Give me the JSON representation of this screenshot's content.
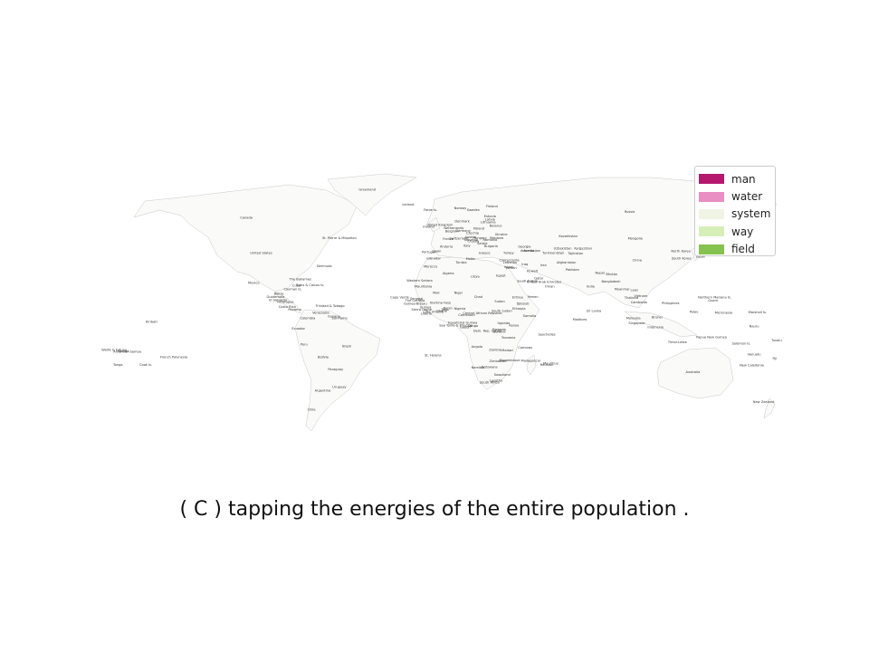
{
  "legend": {
    "items": [
      {
        "label": "man",
        "color": "#b5196e"
      },
      {
        "label": "water",
        "color": "#e98fc3"
      },
      {
        "label": "system",
        "color": "#f0f4e4"
      },
      {
        "label": "way",
        "color": "#d6efb8"
      },
      {
        "label": "field",
        "color": "#86c24f"
      }
    ]
  },
  "caption": "( C ) tapping the energies of the entire population .",
  "country_labels": [
    {
      "name": "Greenland",
      "lon": -41,
      "lat": 73
    },
    {
      "name": "Iceland",
      "lon": -19,
      "lat": 65
    },
    {
      "name": "Faroe Is.",
      "lon": -7,
      "lat": 62
    },
    {
      "name": "Norway",
      "lon": 9,
      "lat": 63
    },
    {
      "name": "Sweden",
      "lon": 16,
      "lat": 62
    },
    {
      "name": "Finland",
      "lon": 26,
      "lat": 64
    },
    {
      "name": "Russia",
      "lon": 100,
      "lat": 61
    },
    {
      "name": "Canada",
      "lon": -106,
      "lat": 58
    },
    {
      "name": "United States",
      "lon": -98,
      "lat": 39
    },
    {
      "name": "St. Pierre & Miquelon",
      "lon": -56,
      "lat": 47
    },
    {
      "name": "Bermuda",
      "lon": -64,
      "lat": 32
    },
    {
      "name": "Mexico",
      "lon": -102,
      "lat": 23
    },
    {
      "name": "The Bahamas",
      "lon": -77,
      "lat": 25
    },
    {
      "name": "Cuba",
      "lon": -79,
      "lat": 21.5
    },
    {
      "name": "Turks & Caicos Is.",
      "lon": -71.7,
      "lat": 21.7
    },
    {
      "name": "Cayman Is.",
      "lon": -81,
      "lat": 19.5
    },
    {
      "name": "Belize",
      "lon": -88.5,
      "lat": 17.2
    },
    {
      "name": "Guatemala",
      "lon": -90.3,
      "lat": 15.5
    },
    {
      "name": "El Salvador",
      "lon": -88.9,
      "lat": 13.7
    },
    {
      "name": "Nicaragua",
      "lon": -85,
      "lat": 12.8
    },
    {
      "name": "Costa Rica",
      "lon": -84,
      "lat": 10
    },
    {
      "name": "Panama",
      "lon": -80,
      "lat": 8.5
    },
    {
      "name": "Trinidad & Tobago",
      "lon": -61,
      "lat": 10.5
    },
    {
      "name": "Venezuela",
      "lon": -66,
      "lat": 7
    },
    {
      "name": "Guyana",
      "lon": -58.9,
      "lat": 5
    },
    {
      "name": "Suriname",
      "lon": -55.9,
      "lat": 4
    },
    {
      "name": "Colombia",
      "lon": -73,
      "lat": 4
    },
    {
      "name": "Ecuador",
      "lon": -78,
      "lat": -1.5
    },
    {
      "name": "Peru",
      "lon": -75,
      "lat": -10
    },
    {
      "name": "Brazil",
      "lon": -52,
      "lat": -11
    },
    {
      "name": "Bolivia",
      "lon": -64.7,
      "lat": -17
    },
    {
      "name": "Paraguay",
      "lon": -58,
      "lat": -23.5
    },
    {
      "name": "Uruguay",
      "lon": -56,
      "lat": -33
    },
    {
      "name": "Argentina",
      "lon": -65,
      "lat": -35
    },
    {
      "name": "Chile",
      "lon": -71,
      "lat": -45
    },
    {
      "name": "Kiribati",
      "lon": -157,
      "lat": 2
    },
    {
      "name": "Wallis & Futuna",
      "lon": -177,
      "lat": -13
    },
    {
      "name": "American Samoa",
      "lon": -170,
      "lat": -14
    },
    {
      "name": "Samoa",
      "lon": -172,
      "lat": -13.7
    },
    {
      "name": "Tonga",
      "lon": -175,
      "lat": -21
    },
    {
      "name": "Cook Is.",
      "lon": -160,
      "lat": -21
    },
    {
      "name": "French Polynesia",
      "lon": -145,
      "lat": -17
    },
    {
      "name": "St. Helena",
      "lon": -5.7,
      "lat": -15.9
    },
    {
      "name": "Ireland",
      "lon": -8,
      "lat": 53
    },
    {
      "name": "United Kingdom",
      "lon": -2,
      "lat": 54
    },
    {
      "name": "Denmark",
      "lon": 10,
      "lat": 56
    },
    {
      "name": "Estonia",
      "lon": 25,
      "lat": 58.6
    },
    {
      "name": "Latvia",
      "lon": 25,
      "lat": 57
    },
    {
      "name": "Lithuania",
      "lon": 24,
      "lat": 55.5
    },
    {
      "name": "Belarus",
      "lon": 28,
      "lat": 53.5
    },
    {
      "name": "Poland",
      "lon": 19,
      "lat": 52
    },
    {
      "name": "Germany",
      "lon": 10.5,
      "lat": 51
    },
    {
      "name": "Netherlands",
      "lon": 5.5,
      "lat": 52.3
    },
    {
      "name": "Belgium",
      "lon": 4.5,
      "lat": 50.6
    },
    {
      "name": "France",
      "lon": 2.5,
      "lat": 46.5
    },
    {
      "name": "Switzerland",
      "lon": 8.2,
      "lat": 46.8
    },
    {
      "name": "Austria",
      "lon": 14.5,
      "lat": 47.5
    },
    {
      "name": "Czechia",
      "lon": 15.5,
      "lat": 49.8
    },
    {
      "name": "Ukraine",
      "lon": 31,
      "lat": 49
    },
    {
      "name": "Moldova",
      "lon": 28.5,
      "lat": 47
    },
    {
      "name": "Romania",
      "lon": 25,
      "lat": 46
    },
    {
      "name": "Hungary",
      "lon": 19.5,
      "lat": 47
    },
    {
      "name": "Slovenia",
      "lon": 14.8,
      "lat": 46.1
    },
    {
      "name": "Croatia",
      "lon": 16,
      "lat": 45.2
    },
    {
      "name": "Serbia",
      "lon": 20.8,
      "lat": 44
    },
    {
      "name": "Bulgaria",
      "lon": 25.5,
      "lat": 42.7
    },
    {
      "name": "Italy",
      "lon": 12.5,
      "lat": 42.8
    },
    {
      "name": "Andorra",
      "lon": 1.5,
      "lat": 42.5
    },
    {
      "name": "Spain",
      "lon": -3.7,
      "lat": 40
    },
    {
      "name": "Portugal",
      "lon": -8,
      "lat": 39.5
    },
    {
      "name": "Gibraltar",
      "lon": -5.3,
      "lat": 36.1
    },
    {
      "name": "Greece",
      "lon": 22,
      "lat": 39
    },
    {
      "name": "Malta",
      "lon": 14.4,
      "lat": 35.9
    },
    {
      "name": "Turkey",
      "lon": 35,
      "lat": 39
    },
    {
      "name": "Georgia",
      "lon": 43.5,
      "lat": 42.3
    },
    {
      "name": "Armenia",
      "lon": 45,
      "lat": 40.2
    },
    {
      "name": "Azerbaijan",
      "lon": 47.5,
      "lat": 40.3
    },
    {
      "name": "Cyprus",
      "lon": 33,
      "lat": 35
    },
    {
      "name": "Syria",
      "lon": 38.5,
      "lat": 35
    },
    {
      "name": "Lebanon",
      "lon": 35.8,
      "lat": 33.9
    },
    {
      "name": "Israel",
      "lon": 34.9,
      "lat": 31.4
    },
    {
      "name": "Jordan",
      "lon": 36.5,
      "lat": 31
    },
    {
      "name": "Iraq",
      "lon": 43.7,
      "lat": 33
    },
    {
      "name": "Iran",
      "lon": 53.7,
      "lat": 32.4
    },
    {
      "name": "Kuwait",
      "lon": 47.7,
      "lat": 29.3
    },
    {
      "name": "Saudi Arabia",
      "lon": 45,
      "lat": 24
    },
    {
      "name": "Qatar",
      "lon": 51.2,
      "lat": 25.3
    },
    {
      "name": "United Arab Emirates",
      "lon": 54,
      "lat": 23.5
    },
    {
      "name": "Oman",
      "lon": 57,
      "lat": 21
    },
    {
      "name": "Yemen",
      "lon": 48,
      "lat": 15.5
    },
    {
      "name": "Kazakhstan",
      "lon": 67,
      "lat": 48
    },
    {
      "name": "Uzbekistan",
      "lon": 64,
      "lat": 41.5
    },
    {
      "name": "Turkmenistan",
      "lon": 59,
      "lat": 39
    },
    {
      "name": "Kyrgyzstan",
      "lon": 75,
      "lat": 41.5
    },
    {
      "name": "Tajikistan",
      "lon": 71,
      "lat": 38.8
    },
    {
      "name": "Afghanistan",
      "lon": 66,
      "lat": 33.9
    },
    {
      "name": "Pakistan",
      "lon": 69.3,
      "lat": 30
    },
    {
      "name": "Mongolia",
      "lon": 103,
      "lat": 46.8
    },
    {
      "name": "China",
      "lon": 104,
      "lat": 35
    },
    {
      "name": "North Korea",
      "lon": 127.5,
      "lat": 40
    },
    {
      "name": "South Korea",
      "lon": 127.8,
      "lat": 36
    },
    {
      "name": "Japan",
      "lon": 138.3,
      "lat": 37
    },
    {
      "name": "Nepal",
      "lon": 84,
      "lat": 28.4
    },
    {
      "name": "Bhutan",
      "lon": 90.4,
      "lat": 27.5
    },
    {
      "name": "Bangladesh",
      "lon": 90,
      "lat": 23.7
    },
    {
      "name": "India",
      "lon": 79,
      "lat": 21
    },
    {
      "name": "Myanmar",
      "lon": 96,
      "lat": 19.5
    },
    {
      "name": "Laos",
      "lon": 102.5,
      "lat": 19
    },
    {
      "name": "Thailand",
      "lon": 101,
      "lat": 15
    },
    {
      "name": "Vietnam",
      "lon": 106,
      "lat": 16
    },
    {
      "name": "Cambodia",
      "lon": 105,
      "lat": 12.5
    },
    {
      "name": "Philippines",
      "lon": 122,
      "lat": 12
    },
    {
      "name": "Northern Mariana Is.",
      "lon": 145.7,
      "lat": 15.2
    },
    {
      "name": "Guam",
      "lon": 144.8,
      "lat": 13.4
    },
    {
      "name": "Palau",
      "lon": 134.5,
      "lat": 7.5
    },
    {
      "name": "Micronesia",
      "lon": 150.5,
      "lat": 7
    },
    {
      "name": "Marshall Is.",
      "lon": 168.7,
      "lat": 7.1
    },
    {
      "name": "Malaysia",
      "lon": 102,
      "lat": 4
    },
    {
      "name": "Brunei",
      "lon": 114.7,
      "lat": 4.5
    },
    {
      "name": "Singapore",
      "lon": 103.8,
      "lat": 1.35
    },
    {
      "name": "Indonesia",
      "lon": 113.9,
      "lat": -0.8
    },
    {
      "name": "Sri Lanka",
      "lon": 80.7,
      "lat": 7.9
    },
    {
      "name": "Maldives",
      "lon": 73.2,
      "lat": 3.2
    },
    {
      "name": "Papua New Guinea",
      "lon": 144,
      "lat": -6.3
    },
    {
      "name": "Timor-Leste",
      "lon": 125.7,
      "lat": -8.8
    },
    {
      "name": "Solomon Is.",
      "lon": 160,
      "lat": -9.6
    },
    {
      "name": "Nauru",
      "lon": 166.9,
      "lat": -0.5
    },
    {
      "name": "Tuvalu",
      "lon": 179,
      "lat": -8
    },
    {
      "name": "Vanuatu",
      "lon": 166.9,
      "lat": -15.4
    },
    {
      "name": "Fiji",
      "lon": 178,
      "lat": -17.7
    },
    {
      "name": "New Caledonia",
      "lon": 165.6,
      "lat": -21.3
    },
    {
      "name": "Australia",
      "lon": 134,
      "lat": -25
    },
    {
      "name": "New Zealand",
      "lon": 172,
      "lat": -41
    },
    {
      "name": "Western Sahara",
      "lon": -12.9,
      "lat": 24.2
    },
    {
      "name": "Morocco",
      "lon": -7,
      "lat": 31.8
    },
    {
      "name": "Algeria",
      "lon": 2.6,
      "lat": 28
    },
    {
      "name": "Tunisia",
      "lon": 9.5,
      "lat": 34
    },
    {
      "name": "Libya",
      "lon": 17,
      "lat": 26.3
    },
    {
      "name": "Egypt",
      "lon": 30.8,
      "lat": 26.8
    },
    {
      "name": "Mauritania",
      "lon": -10.9,
      "lat": 21
    },
    {
      "name": "Mali",
      "lon": -4,
      "lat": 17.6
    },
    {
      "name": "Niger",
      "lon": 8,
      "lat": 17.6
    },
    {
      "name": "Chad",
      "lon": 18.7,
      "lat": 15.5
    },
    {
      "name": "Sudan",
      "lon": 30.2,
      "lat": 12.9
    },
    {
      "name": "Eritrea",
      "lon": 39.8,
      "lat": 15.2
    },
    {
      "name": "Djibouti",
      "lon": 42.6,
      "lat": 11.8
    },
    {
      "name": "Ethiopia",
      "lon": 40.5,
      "lat": 9.1
    },
    {
      "name": "Somalia",
      "lon": 46.2,
      "lat": 5.2
    },
    {
      "name": "Cape Verde",
      "lon": -23.6,
      "lat": 15.1
    },
    {
      "name": "Senegal",
      "lon": -14.5,
      "lat": 14.5
    },
    {
      "name": "The Gambia",
      "lon": -15.3,
      "lat": 13.4
    },
    {
      "name": "Guinea-Bissau",
      "lon": -15.2,
      "lat": 11.8
    },
    {
      "name": "Guinea",
      "lon": -9.7,
      "lat": 9.9
    },
    {
      "name": "Sierra Leone",
      "lon": -11.8,
      "lat": 8.5
    },
    {
      "name": "Liberia",
      "lon": -9.4,
      "lat": 6.4
    },
    {
      "name": "Côte d'Ivoire",
      "lon": -5.5,
      "lat": 7.5
    },
    {
      "name": "Burkina Faso",
      "lon": -1.6,
      "lat": 12.2
    },
    {
      "name": "Ghana",
      "lon": -1,
      "lat": 7.9
    },
    {
      "name": "Togo",
      "lon": 0.8,
      "lat": 8.6
    },
    {
      "name": "Benin",
      "lon": 2.3,
      "lat": 9.3
    },
    {
      "name": "Nigeria",
      "lon": 8.7,
      "lat": 9.1
    },
    {
      "name": "Cameroon",
      "lon": 12.4,
      "lat": 5.7
    },
    {
      "name": "Central African Republic",
      "lon": 20.9,
      "lat": 6.6
    },
    {
      "name": "South Sudan",
      "lon": 31.3,
      "lat": 7.9
    },
    {
      "name": "Equatorial Guinea",
      "lon": 10.3,
      "lat": 1.6
    },
    {
      "name": "Sao Tome & Principe",
      "lon": 6.6,
      "lat": 0.2
    },
    {
      "name": "Gabon",
      "lon": 11.6,
      "lat": -0.8
    },
    {
      "name": "Congo",
      "lon": 15.8,
      "lat": -0.2
    },
    {
      "name": "Dem. Rep. Congo",
      "lon": 23.6,
      "lat": -2.9
    },
    {
      "name": "Uganda",
      "lon": 32.3,
      "lat": 1.4
    },
    {
      "name": "Kenya",
      "lon": 37.9,
      "lat": 0.2
    },
    {
      "name": "Rwanda",
      "lon": 29.9,
      "lat": -2
    },
    {
      "name": "Burundi",
      "lon": 29.9,
      "lat": -3.4
    },
    {
      "name": "Tanzania",
      "lon": 34.9,
      "lat": -6.4
    },
    {
      "name": "Seychelles",
      "lon": 55.5,
      "lat": -4.7
    },
    {
      "name": "Angola",
      "lon": 17.9,
      "lat": -11.2
    },
    {
      "name": "Zambia",
      "lon": 27.8,
      "lat": -13.1
    },
    {
      "name": "Malawi",
      "lon": 34.3,
      "lat": -13.3
    },
    {
      "name": "Comoros",
      "lon": 43.9,
      "lat": -11.9
    },
    {
      "name": "Mozambique",
      "lon": 35.5,
      "lat": -18.7
    },
    {
      "name": "Madagascar",
      "lon": 46.9,
      "lat": -18.8
    },
    {
      "name": "Mauritius",
      "lon": 57.6,
      "lat": -20.3
    },
    {
      "name": "Réunion",
      "lon": 55.5,
      "lat": -21.1
    },
    {
      "name": "Zimbabwe",
      "lon": 29.2,
      "lat": -19
    },
    {
      "name": "Namibia",
      "lon": 18.5,
      "lat": -22.6
    },
    {
      "name": "Botswana",
      "lon": 24.7,
      "lat": -22.3
    },
    {
      "name": "Swaziland",
      "lon": 31.5,
      "lat": -26.5
    },
    {
      "name": "Lesotho",
      "lon": 28.2,
      "lat": -29.6
    },
    {
      "name": "South Africa",
      "lon": 24.7,
      "lat": -30.6
    }
  ]
}
